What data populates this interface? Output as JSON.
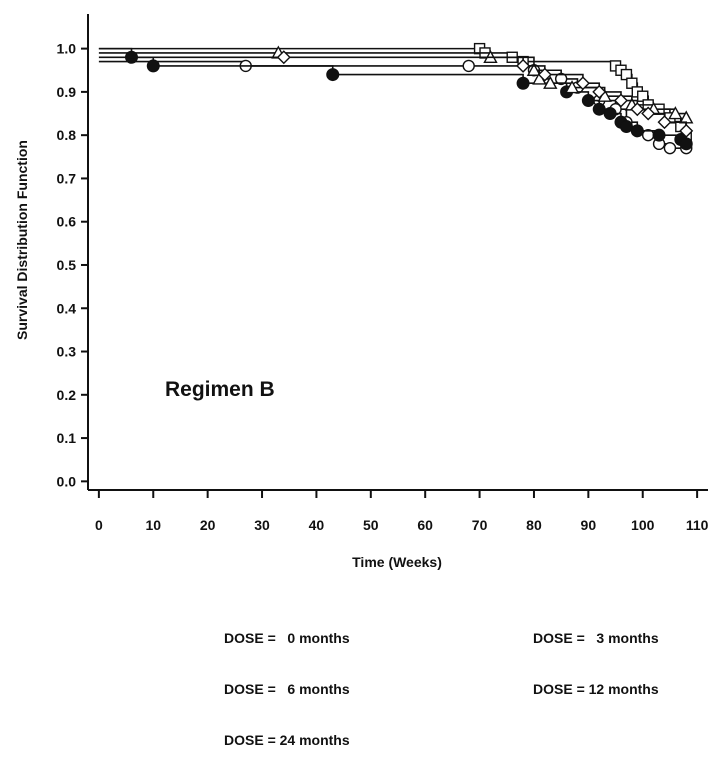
{
  "chart_data": {
    "type": "line",
    "title": "",
    "xlabel": "Time (Weeks)",
    "ylabel": "Survival Distribution Function",
    "annotation": "Regimen B",
    "xlim": [
      -2,
      112
    ],
    "ylim": [
      -0.02,
      1.08
    ],
    "xticks": [
      0,
      10,
      20,
      30,
      40,
      50,
      60,
      70,
      80,
      90,
      100,
      110
    ],
    "yticks": [
      0.0,
      0.1,
      0.2,
      0.3,
      0.4,
      0.5,
      0.6,
      0.7,
      0.8,
      0.9,
      1.0
    ],
    "ytick_labels": [
      "0.0",
      "0.1",
      "0.2",
      "0.3",
      "0.4",
      "0.5",
      "0.6",
      "0.7",
      "0.8",
      "0.9",
      "1.0"
    ],
    "legend": [
      "DOSE =   0 months",
      "DOSE =   6 months",
      "DOSE = 24 months",
      "DOSE =   3 months",
      "DOSE = 12 months"
    ],
    "series": [
      {
        "marker": "open-square",
        "points": [
          [
            0,
            1.0
          ],
          [
            70,
            1.0
          ],
          [
            71,
            0.99
          ],
          [
            76,
            0.98
          ],
          [
            78,
            0.97
          ],
          [
            95,
            0.96
          ],
          [
            96,
            0.95
          ],
          [
            97,
            0.94
          ],
          [
            98,
            0.92
          ],
          [
            99,
            0.9
          ],
          [
            100,
            0.89
          ],
          [
            101,
            0.87
          ],
          [
            103,
            0.86
          ],
          [
            105,
            0.84
          ],
          [
            107,
            0.82
          ],
          [
            108,
            0.8
          ]
        ]
      },
      {
        "marker": "open-circle",
        "points": [
          [
            0,
            0.97
          ],
          [
            27,
            0.96
          ],
          [
            68,
            0.96
          ],
          [
            80,
            0.95
          ],
          [
            85,
            0.93
          ],
          [
            88,
            0.91
          ],
          [
            92,
            0.88
          ],
          [
            95,
            0.86
          ],
          [
            97,
            0.83
          ],
          [
            99,
            0.81
          ],
          [
            101,
            0.8
          ],
          [
            103,
            0.78
          ],
          [
            105,
            0.77
          ],
          [
            108,
            0.77
          ]
        ]
      },
      {
        "marker": "filled-circle",
        "points": [
          [
            0,
            1.0
          ],
          [
            6,
            0.98
          ],
          [
            10,
            0.96
          ],
          [
            43,
            0.94
          ],
          [
            78,
            0.92
          ],
          [
            86,
            0.9
          ],
          [
            90,
            0.88
          ],
          [
            92,
            0.86
          ],
          [
            94,
            0.85
          ],
          [
            96,
            0.83
          ],
          [
            97,
            0.82
          ],
          [
            99,
            0.81
          ],
          [
            103,
            0.8
          ],
          [
            107,
            0.79
          ],
          [
            108,
            0.78
          ]
        ]
      },
      {
        "marker": "open-triangle",
        "points": [
          [
            0,
            0.99
          ],
          [
            33,
            0.99
          ],
          [
            72,
            0.98
          ],
          [
            80,
            0.95
          ],
          [
            81,
            0.93
          ],
          [
            83,
            0.92
          ],
          [
            87,
            0.91
          ],
          [
            93,
            0.89
          ],
          [
            98,
            0.87
          ],
          [
            102,
            0.86
          ],
          [
            106,
            0.85
          ],
          [
            108,
            0.84
          ]
        ]
      },
      {
        "marker": "open-diamond",
        "points": [
          [
            0,
            0.98
          ],
          [
            34,
            0.98
          ],
          [
            78,
            0.96
          ],
          [
            82,
            0.94
          ],
          [
            89,
            0.92
          ],
          [
            92,
            0.9
          ],
          [
            96,
            0.88
          ],
          [
            99,
            0.86
          ],
          [
            101,
            0.85
          ],
          [
            104,
            0.83
          ],
          [
            108,
            0.81
          ]
        ]
      }
    ]
  }
}
